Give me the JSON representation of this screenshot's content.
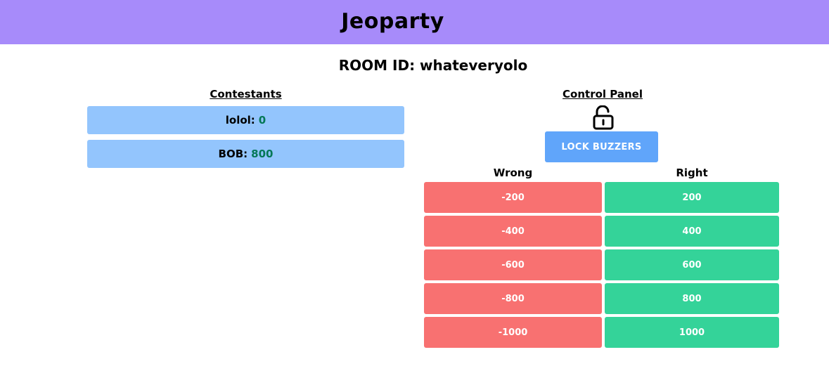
{
  "header": {
    "title": "Jeoparty"
  },
  "room": {
    "label": "ROOM ID: whateveryolo"
  },
  "contestants": {
    "title": "Contestants",
    "items": [
      {
        "name": "lolol:",
        "score": "0"
      },
      {
        "name": "BOB:",
        "score": "800"
      }
    ]
  },
  "control_panel": {
    "title": "Control Panel",
    "lock_icon": "unlocked-padlock-icon",
    "lock_button": "LOCK BUZZERS",
    "wrong_label": "Wrong",
    "right_label": "Right",
    "wrong_values": [
      "-200",
      "-400",
      "-600",
      "-800",
      "-1000"
    ],
    "right_values": [
      "200",
      "400",
      "600",
      "800",
      "1000"
    ]
  },
  "colors": {
    "header_bg": "#a78bfa",
    "contestant_bg": "#93c5fd",
    "score_text": "#047857",
    "lock_button_bg": "#60a5fa",
    "wrong_bg": "#f87171",
    "right_bg": "#34d399"
  }
}
